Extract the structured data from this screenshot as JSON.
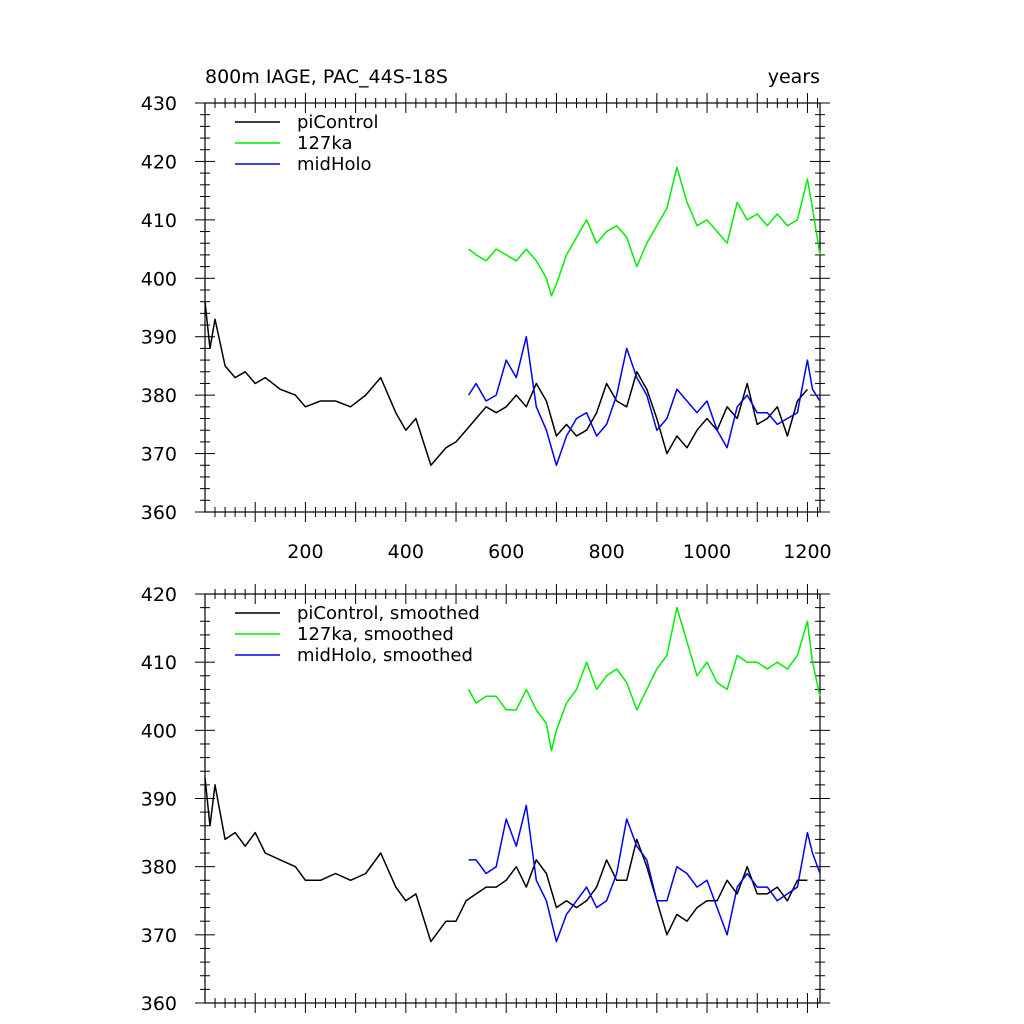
{
  "title_left": "800m IAGE, PAC_44S-18S",
  "title_right": "years",
  "colors": {
    "piControl": "#000000",
    "127ka": "#00ee00",
    "midHolo": "#0000ee"
  },
  "chart_data": [
    {
      "type": "line",
      "xlim": [
        0,
        1225
      ],
      "ylim": [
        360,
        430
      ],
      "xticks": [
        200,
        400,
        600,
        800,
        1000,
        1200
      ],
      "yticks": [
        360,
        370,
        380,
        390,
        400,
        410,
        420,
        430
      ],
      "legend_position": "top-left",
      "series": [
        {
          "name": "piControl",
          "color": "#000000",
          "x": [
            0,
            10,
            20,
            40,
            60,
            80,
            100,
            120,
            150,
            180,
            200,
            230,
            260,
            290,
            320,
            350,
            380,
            400,
            420,
            450,
            480,
            500,
            520,
            540,
            560,
            580,
            600,
            620,
            640,
            660,
            680,
            700,
            720,
            740,
            760,
            780,
            800,
            820,
            840,
            860,
            880,
            900,
            920,
            940,
            960,
            980,
            1000,
            1020,
            1040,
            1060,
            1080,
            1100,
            1120,
            1140,
            1160,
            1180,
            1200
          ],
          "y": [
            396,
            388,
            393,
            385,
            383,
            384,
            382,
            383,
            381,
            380,
            378,
            379,
            379,
            378,
            380,
            383,
            377,
            374,
            376,
            368,
            371,
            372,
            374,
            376,
            378,
            377,
            378,
            380,
            378,
            382,
            379,
            373,
            375,
            373,
            374,
            377,
            382,
            379,
            378,
            384,
            381,
            376,
            370,
            373,
            371,
            374,
            376,
            374,
            378,
            376,
            382,
            375,
            376,
            378,
            373,
            379,
            381
          ]
        },
        {
          "name": "127ka",
          "color": "#00ee00",
          "x": [
            525,
            540,
            560,
            580,
            600,
            620,
            640,
            660,
            680,
            690,
            700,
            720,
            740,
            760,
            780,
            800,
            820,
            840,
            860,
            880,
            900,
            920,
            940,
            960,
            980,
            1000,
            1020,
            1040,
            1060,
            1080,
            1100,
            1120,
            1140,
            1160,
            1180,
            1200,
            1210,
            1225
          ],
          "y": [
            405,
            404,
            403,
            405,
            404,
            403,
            405,
            403,
            400,
            397,
            399,
            404,
            407,
            410,
            406,
            408,
            409,
            407,
            402,
            406,
            409,
            412,
            419,
            413,
            409,
            410,
            408,
            406,
            413,
            410,
            411,
            409,
            411,
            409,
            410,
            417,
            412,
            404
          ]
        },
        {
          "name": "midHolo",
          "color": "#0000ee",
          "x": [
            525,
            540,
            560,
            580,
            600,
            620,
            640,
            660,
            680,
            700,
            720,
            740,
            760,
            780,
            800,
            820,
            840,
            860,
            880,
            900,
            920,
            940,
            960,
            980,
            1000,
            1020,
            1040,
            1060,
            1080,
            1100,
            1120,
            1140,
            1160,
            1180,
            1200,
            1210,
            1225
          ],
          "y": [
            380,
            382,
            379,
            380,
            386,
            383,
            390,
            378,
            374,
            368,
            373,
            376,
            377,
            373,
            375,
            380,
            388,
            383,
            380,
            374,
            376,
            381,
            379,
            377,
            379,
            374,
            371,
            378,
            380,
            377,
            377,
            375,
            376,
            377,
            386,
            381,
            379
          ]
        }
      ]
    },
    {
      "type": "line",
      "xlim": [
        0,
        1225
      ],
      "ylim": [
        360,
        420
      ],
      "xticks": [
        200,
        400,
        600,
        800,
        1000,
        1200
      ],
      "yticks": [
        360,
        370,
        380,
        390,
        400,
        410,
        420
      ],
      "legend_position": "top-left",
      "series": [
        {
          "name": "piControl, smoothed",
          "color": "#000000",
          "x": [
            0,
            10,
            20,
            40,
            60,
            80,
            100,
            120,
            150,
            180,
            200,
            230,
            260,
            290,
            320,
            350,
            380,
            400,
            420,
            450,
            480,
            500,
            520,
            540,
            560,
            580,
            600,
            620,
            640,
            660,
            680,
            700,
            720,
            740,
            760,
            780,
            800,
            820,
            840,
            860,
            880,
            900,
            920,
            940,
            960,
            980,
            1000,
            1020,
            1040,
            1060,
            1080,
            1100,
            1120,
            1140,
            1160,
            1180,
            1200
          ],
          "y": [
            393,
            386,
            392,
            384,
            385,
            383,
            385,
            382,
            381,
            380,
            378,
            378,
            379,
            378,
            379,
            382,
            377,
            375,
            376,
            369,
            372,
            372,
            375,
            376,
            377,
            377,
            378,
            380,
            377,
            381,
            379,
            374,
            375,
            374,
            375,
            377,
            381,
            378,
            378,
            384,
            380,
            375,
            370,
            373,
            372,
            374,
            375,
            375,
            378,
            376,
            380,
            376,
            376,
            377,
            375,
            378,
            378
          ]
        },
        {
          "name": "127ka, smoothed",
          "color": "#00ee00",
          "x": [
            525,
            540,
            560,
            580,
            600,
            620,
            640,
            660,
            680,
            690,
            700,
            720,
            740,
            760,
            780,
            800,
            820,
            840,
            860,
            880,
            900,
            920,
            940,
            960,
            980,
            1000,
            1020,
            1040,
            1060,
            1080,
            1100,
            1120,
            1140,
            1160,
            1180,
            1200,
            1210,
            1225
          ],
          "y": [
            406,
            404,
            405,
            405,
            403,
            403,
            406,
            403,
            401,
            397,
            400,
            404,
            406,
            410,
            406,
            408,
            409,
            407,
            403,
            406,
            409,
            411,
            418,
            413,
            408,
            410,
            407,
            406,
            411,
            410,
            410,
            409,
            410,
            409,
            411,
            416,
            410,
            405
          ]
        },
        {
          "name": "midHolo, smoothed",
          "color": "#0000ee",
          "x": [
            525,
            540,
            560,
            580,
            600,
            620,
            640,
            660,
            680,
            700,
            720,
            740,
            760,
            780,
            800,
            820,
            840,
            860,
            880,
            900,
            920,
            940,
            960,
            980,
            1000,
            1020,
            1040,
            1060,
            1080,
            1100,
            1120,
            1140,
            1160,
            1180,
            1200,
            1210,
            1225
          ],
          "y": [
            381,
            381,
            379,
            380,
            387,
            383,
            389,
            378,
            375,
            369,
            373,
            375,
            377,
            374,
            375,
            379,
            387,
            383,
            381,
            375,
            375,
            380,
            379,
            377,
            378,
            374,
            370,
            377,
            379,
            377,
            377,
            375,
            376,
            377,
            385,
            382,
            379
          ]
        }
      ]
    }
  ]
}
